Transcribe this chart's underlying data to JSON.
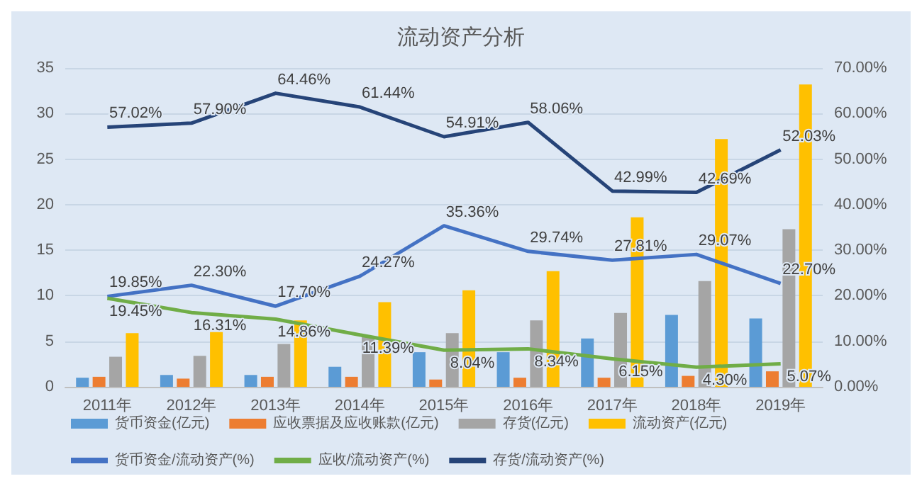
{
  "chart_data": {
    "type": "bar",
    "title": "流动资产分析",
    "categories": [
      "2011年",
      "2012年",
      "2013年",
      "2014年",
      "2015年",
      "2016年",
      "2017年",
      "2018年",
      "2019年"
    ],
    "series": [
      {
        "name": "货币资金(亿元)",
        "color": "#5b9bd5",
        "values": [
          1.0,
          1.3,
          1.3,
          2.2,
          3.8,
          3.8,
          5.3,
          7.9,
          7.5
        ]
      },
      {
        "name": "应收票据及应收账款(亿元)",
        "color": "#ed7d31",
        "values": [
          1.1,
          0.9,
          1.1,
          1.1,
          0.8,
          1.0,
          1.0,
          1.2,
          1.7
        ]
      },
      {
        "name": "存货(亿元)",
        "color": "#a5a5a5",
        "values": [
          3.3,
          3.4,
          4.7,
          5.5,
          5.9,
          7.3,
          8.1,
          11.6,
          17.3
        ]
      },
      {
        "name": "流动资产(亿元)",
        "color": "#ffc000",
        "values": [
          5.9,
          6.0,
          7.3,
          9.3,
          10.6,
          12.7,
          18.6,
          27.2,
          33.2
        ]
      },
      {
        "name": "货币资金/流动资产(%)",
        "type": "line",
        "axis": "y2",
        "color": "#4472c4",
        "values": [
          19.85,
          22.3,
          17.7,
          24.27,
          35.36,
          29.74,
          27.81,
          29.07,
          22.7
        ],
        "value_labels": [
          "19.85%",
          "22.30%",
          "17.70%",
          "24.27%",
          "35.36%",
          "29.74%",
          "27.81%",
          "29.07%",
          "22.70%"
        ]
      },
      {
        "name": "应收/流动资产(%)",
        "type": "line",
        "axis": "y2",
        "color": "#70ad47",
        "values": [
          19.45,
          16.31,
          14.86,
          11.39,
          8.04,
          8.34,
          6.15,
          4.3,
          5.07
        ],
        "value_labels": [
          "19.45%",
          "16.31%",
          "14.86%",
          "11.39%",
          "8.04%",
          "8.34%",
          "6.15%",
          "4.30%",
          "5.07%"
        ]
      },
      {
        "name": "存货/流动资产(%)",
        "type": "line",
        "axis": "y2",
        "color": "#264478",
        "values": [
          57.02,
          57.9,
          64.46,
          61.44,
          54.91,
          58.06,
          42.99,
          42.69,
          52.03
        ],
        "value_labels": [
          "57.02%",
          "57.90%",
          "64.46%",
          "61.44%",
          "54.91%",
          "58.06%",
          "42.99%",
          "42.69%",
          "52.03%"
        ]
      }
    ],
    "ylim": [
      0,
      35
    ],
    "yticks": [
      0,
      5,
      10,
      15,
      20,
      25,
      30,
      35
    ],
    "y2lim": [
      0,
      70
    ],
    "y2ticks": [
      {
        "value": 0,
        "label": "0.00%"
      },
      {
        "value": 10,
        "label": "10.00%"
      },
      {
        "value": 20,
        "label": "20.00%"
      },
      {
        "value": 30,
        "label": "30.00%"
      },
      {
        "value": 40,
        "label": "40.00%"
      },
      {
        "value": 50,
        "label": "50.00%"
      },
      {
        "value": 60,
        "label": "60.00%"
      },
      {
        "value": 70,
        "label": "70.00%"
      }
    ],
    "grid": "y",
    "legend": "bottom",
    "marker": "none",
    "line_style": "solid"
  }
}
